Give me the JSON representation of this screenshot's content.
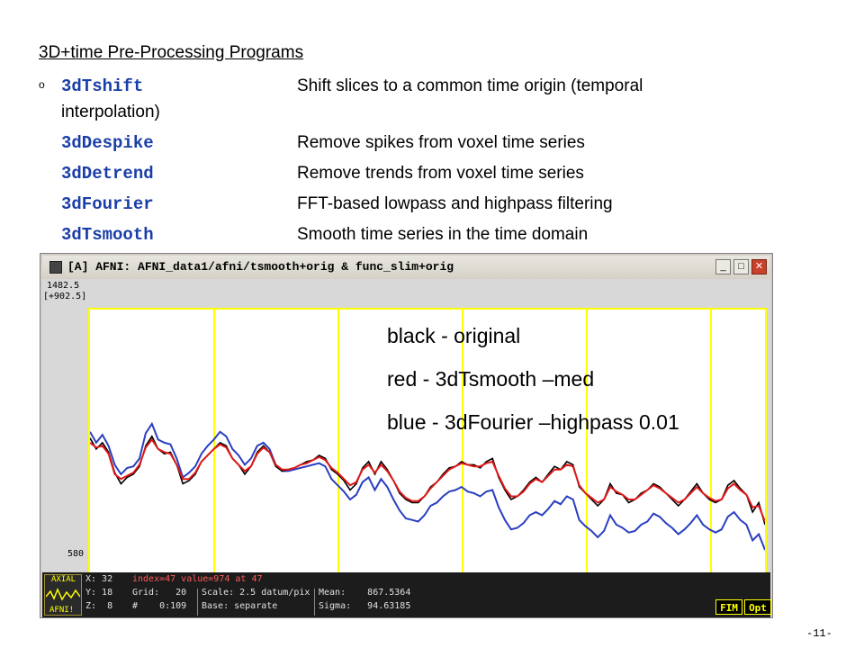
{
  "slide": {
    "heading": "3D+time Pre-Processing Programs",
    "bullet": "o",
    "programs": [
      {
        "cmd": "3dTshift",
        "desc": "Shift slices to a common time origin (temporal"
      },
      {
        "cmd": "3dDespike",
        "desc": "Remove spikes from voxel time series"
      },
      {
        "cmd": "3dDetrend",
        "desc": "Remove trends from voxel time series"
      },
      {
        "cmd": "3dFourier",
        "desc": "FFT-based lowpass and highpass filtering"
      },
      {
        "cmd": "3dTsmooth",
        "desc": "Smooth time series in the time domain"
      }
    ],
    "wrap_text": "interpolation)",
    "page_number": "-11-"
  },
  "window": {
    "title": "[A] AFNI: AFNI_data1/afni/tsmooth+orig & func_slim+orig",
    "buttons": {
      "minimize": "_",
      "maximize": "□",
      "close": "✕"
    }
  },
  "graph": {
    "y_top": "1482.5",
    "y_range": "[+902.5]",
    "y_bottom": "580",
    "legend": [
      {
        "text": "black - original",
        "color": "#000000"
      },
      {
        "text": "red - 3dTsmooth –med",
        "color": "#000000"
      },
      {
        "text": "blue - 3dFourier –highpass 0.01",
        "color": "#000000"
      }
    ],
    "colors": {
      "frame": "#ffff00",
      "original": "#000000",
      "tsmooth": "#e01818",
      "fourier": "#2a3fc0"
    }
  },
  "chart_data": {
    "type": "line",
    "x": [
      0,
      1,
      2,
      3,
      4,
      5,
      6,
      7,
      8,
      9,
      10,
      11,
      12,
      13,
      14,
      15,
      16,
      17,
      18,
      19,
      20,
      21,
      22,
      23,
      24,
      25,
      26,
      27,
      28,
      29,
      30,
      31,
      32,
      33,
      34,
      35,
      36,
      37,
      38,
      39,
      40,
      41,
      42,
      43,
      44,
      45,
      46,
      47,
      48,
      49,
      50,
      51,
      52,
      53,
      54,
      55,
      56,
      57,
      58,
      59,
      60,
      61,
      62,
      63,
      64,
      65,
      66,
      67,
      68,
      69,
      70,
      71,
      72,
      73,
      74,
      75,
      76,
      77,
      78,
      79,
      80,
      81,
      82,
      83,
      84,
      85,
      86,
      87,
      88,
      89,
      90,
      91,
      92,
      93,
      94,
      95,
      96,
      97,
      98,
      99,
      100,
      101,
      102,
      103,
      104,
      105,
      106,
      107,
      108,
      109
    ],
    "ylim": [
      580,
      1482.5
    ],
    "series": [
      {
        "name": "black - original",
        "values": [
          1075,
          1040,
          1060,
          1030,
          965,
          930,
          950,
          960,
          985,
          1050,
          1080,
          1040,
          1025,
          1030,
          990,
          930,
          940,
          960,
          1000,
          1020,
          1040,
          1060,
          1050,
          1010,
          990,
          960,
          985,
          1030,
          1050,
          1030,
          985,
          970,
          975,
          980,
          990,
          1000,
          1005,
          1020,
          1010,
          975,
          960,
          940,
          910,
          930,
          980,
          1000,
          960,
          1000,
          975,
          940,
          900,
          880,
          870,
          870,
          890,
          920,
          935,
          960,
          980,
          985,
          1000,
          990,
          990,
          980,
          1000,
          1010,
          950,
          910,
          880,
          890,
          910,
          935,
          950,
          935,
          960,
          985,
          975,
          1000,
          990,
          920,
          900,
          880,
          860,
          880,
          930,
          900,
          895,
          870,
          880,
          900,
          910,
          930,
          920,
          900,
          880,
          860,
          880,
          905,
          930,
          900,
          880,
          870,
          880,
          925,
          940,
          915,
          895,
          840,
          870,
          800
        ]
      },
      {
        "name": "red - 3dTsmooth –med",
        "values": [
          1060,
          1045,
          1050,
          1025,
          960,
          945,
          955,
          965,
          990,
          1045,
          1070,
          1040,
          1030,
          1025,
          990,
          945,
          945,
          965,
          1000,
          1020,
          1040,
          1055,
          1045,
          1010,
          990,
          970,
          985,
          1025,
          1045,
          1030,
          990,
          975,
          975,
          980,
          990,
          995,
          1005,
          1015,
          1005,
          980,
          965,
          945,
          925,
          935,
          975,
          990,
          965,
          990,
          970,
          940,
          905,
          885,
          875,
          875,
          890,
          915,
          935,
          955,
          975,
          985,
          995,
          990,
          985,
          985,
          995,
          1000,
          955,
          915,
          890,
          890,
          905,
          930,
          945,
          935,
          955,
          975,
          975,
          990,
          985,
          925,
          900,
          885,
          870,
          880,
          920,
          905,
          895,
          880,
          880,
          895,
          910,
          925,
          915,
          900,
          885,
          870,
          880,
          900,
          920,
          900,
          885,
          875,
          880,
          915,
          930,
          910,
          895,
          855,
          860,
          810
        ]
      },
      {
        "name": "blue - 3dFourier –highpass 0.01",
        "values": [
          1095,
          1060,
          1085,
          1050,
          990,
          960,
          980,
          985,
          1010,
          1090,
          1120,
          1070,
          1060,
          1055,
          1010,
          950,
          965,
          985,
          1025,
          1050,
          1070,
          1095,
          1080,
          1040,
          1020,
          990,
          1010,
          1050,
          1060,
          1040,
          990,
          970,
          970,
          975,
          980,
          985,
          990,
          995,
          985,
          945,
          925,
          905,
          880,
          895,
          935,
          950,
          910,
          945,
          920,
          880,
          845,
          820,
          815,
          810,
          830,
          860,
          870,
          890,
          905,
          910,
          920,
          905,
          900,
          890,
          905,
          910,
          855,
          815,
          785,
          790,
          805,
          830,
          840,
          830,
          850,
          875,
          865,
          890,
          880,
          815,
          795,
          780,
          760,
          780,
          830,
          800,
          790,
          775,
          780,
          800,
          810,
          835,
          825,
          805,
          790,
          770,
          785,
          805,
          830,
          800,
          785,
          775,
          785,
          825,
          840,
          815,
          800,
          750,
          770,
          720
        ]
      }
    ]
  },
  "status": {
    "x": "X: 32",
    "y": "Y: 18",
    "z": "Z:  8",
    "index": "index=47 value=974 at 47",
    "grid": "Grid:   20",
    "hash": "#    0:109",
    "scale": "Scale: 2.5 datum/pix",
    "base": "Base: separate",
    "mean": "Mean:    867.5364",
    "sigma": "Sigma:   94.63185",
    "thumb_top": "AXIAL",
    "thumb_bottom": "AFNI!",
    "fim": "FIM",
    "opt": "Opt"
  }
}
